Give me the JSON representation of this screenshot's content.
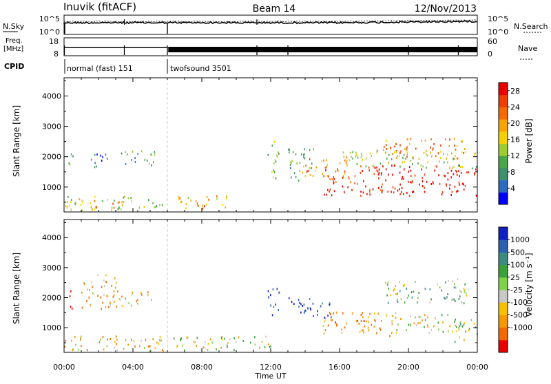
{
  "header": {
    "station": "Inuvik (fitACF)",
    "beam": "Beam 14",
    "date": "12/Nov/2013"
  },
  "params": {
    "nsky_label": "N.Sky",
    "nsearch_label": "N.Search",
    "freq_label_1": "Freq.",
    "freq_label_2": "[MHz]",
    "nave_label": "Nave",
    "cpid_label": "CPID",
    "noise_ticks_left": [
      "10^5",
      "10^0"
    ],
    "noise_ticks_right": [
      "10^5",
      "10^0"
    ],
    "freq_ticks": [
      "18",
      "8"
    ],
    "nave_ticks": [
      "60",
      "0"
    ],
    "cpid_segments": [
      {
        "label": "normal (fast) 151",
        "start_hour": 0,
        "end_hour": 6.0
      },
      {
        "label": "twofsound 3501",
        "start_hour": 6.0,
        "end_hour": 24
      }
    ]
  },
  "axes": {
    "x_ticks": [
      "00:00",
      "04:00",
      "08:00",
      "12:00",
      "16:00",
      "20:00",
      "00:00"
    ],
    "x_label": "Time UT",
    "y_label": "Slant Range [km]",
    "y_ticks": [
      "1000",
      "2000",
      "3000",
      "4000"
    ]
  },
  "power_bar": {
    "label": "Power [dB]",
    "ticks": [
      "4",
      "8",
      "12",
      "16",
      "20",
      "24",
      "28"
    ],
    "colors": [
      "#0000ff",
      "#2d6abf",
      "#3f8f6f",
      "#49a64a",
      "#9ccc2f",
      "#f5d000",
      "#f7a400",
      "#f46a00",
      "#ef3c00",
      "#e80000"
    ]
  },
  "velocity_bar": {
    "label": "Velocity [m s⁻¹]",
    "ticks": [
      "1000",
      "500",
      "100",
      "25",
      "-25",
      "-100",
      "-500",
      "-1000"
    ],
    "colors": [
      "#1020c0",
      "#2d5fb0",
      "#3f8a80",
      "#3aa13a",
      "#7fd14a",
      "#c8c8c8",
      "#f5c000",
      "#f49a00",
      "#f26a00",
      "#e80000"
    ]
  },
  "chart_data": [
    {
      "type": "heatmap",
      "quantity": "Power",
      "xlim_hours": [
        0,
        24
      ],
      "ylim": [
        180,
        4600
      ],
      "colorbar_range": [
        0,
        30
      ],
      "regions": [
        {
          "t": [
            0.2,
            0.5
          ],
          "r": [
            1500,
            2300
          ],
          "v": 8
        },
        {
          "t": [
            1.2,
            2.5
          ],
          "r": [
            1600,
            2100
          ],
          "v": 6
        },
        {
          "t": [
            3.0,
            5.3
          ],
          "r": [
            1700,
            2200
          ],
          "v": 10
        },
        {
          "t": [
            0.0,
            5.8
          ],
          "r": [
            200,
            700
          ],
          "v": 14
        },
        {
          "t": [
            1.5,
            3.5
          ],
          "r": [
            300,
            600
          ],
          "v": 22
        },
        {
          "t": [
            6.5,
            9.5
          ],
          "r": [
            250,
            700
          ],
          "v": 18
        },
        {
          "t": [
            7.5,
            8.5
          ],
          "r": [
            250,
            450
          ],
          "v": 26
        },
        {
          "t": [
            11.8,
            12.5
          ],
          "r": [
            1200,
            2600
          ],
          "v": 12
        },
        {
          "t": [
            13.0,
            14.5
          ],
          "r": [
            1200,
            2300
          ],
          "v": 10
        },
        {
          "t": [
            13.8,
            16.5
          ],
          "r": [
            1300,
            2000
          ],
          "v": 20
        },
        {
          "t": [
            15.0,
            18.5
          ],
          "r": [
            700,
            1700
          ],
          "v": 26
        },
        {
          "t": [
            18.0,
            24.0
          ],
          "r": [
            700,
            1700
          ],
          "v": 29
        },
        {
          "t": [
            18.5,
            23.5
          ],
          "r": [
            1900,
            2600
          ],
          "v": 22
        },
        {
          "t": [
            16.0,
            24.0
          ],
          "r": [
            1600,
            2200
          ],
          "v": 14
        }
      ]
    },
    {
      "type": "heatmap",
      "quantity": "Velocity",
      "xlim_hours": [
        0,
        24
      ],
      "ylim": [
        180,
        4600
      ],
      "colorbar_range": [
        -1000,
        1000
      ],
      "regions": [
        {
          "t": [
            0.2,
            0.5
          ],
          "r": [
            1500,
            2200
          ],
          "v": -700
        },
        {
          "t": [
            1.0,
            3.0
          ],
          "r": [
            1600,
            2800
          ],
          "v": -200
        },
        {
          "t": [
            3.0,
            5.3
          ],
          "r": [
            1700,
            2200
          ],
          "v": -150
        },
        {
          "t": [
            0.0,
            5.8
          ],
          "r": [
            200,
            700
          ],
          "v": -150
        },
        {
          "t": [
            6.2,
            12.0
          ],
          "r": [
            200,
            700
          ],
          "v": 0
        },
        {
          "t": [
            11.8,
            12.5
          ],
          "r": [
            1300,
            2300
          ],
          "v": 600
        },
        {
          "t": [
            13.0,
            15.5
          ],
          "r": [
            1300,
            2000
          ],
          "v": 700
        },
        {
          "t": [
            15.0,
            19.0
          ],
          "r": [
            700,
            1500
          ],
          "v": -300
        },
        {
          "t": [
            19.0,
            23.0
          ],
          "r": [
            800,
            1500
          ],
          "v": 0
        },
        {
          "t": [
            22.5,
            24.0
          ],
          "r": [
            500,
            1300
          ],
          "v": 60
        },
        {
          "t": [
            18.5,
            23.5
          ],
          "r": [
            1800,
            2600
          ],
          "v": 150
        }
      ]
    }
  ]
}
